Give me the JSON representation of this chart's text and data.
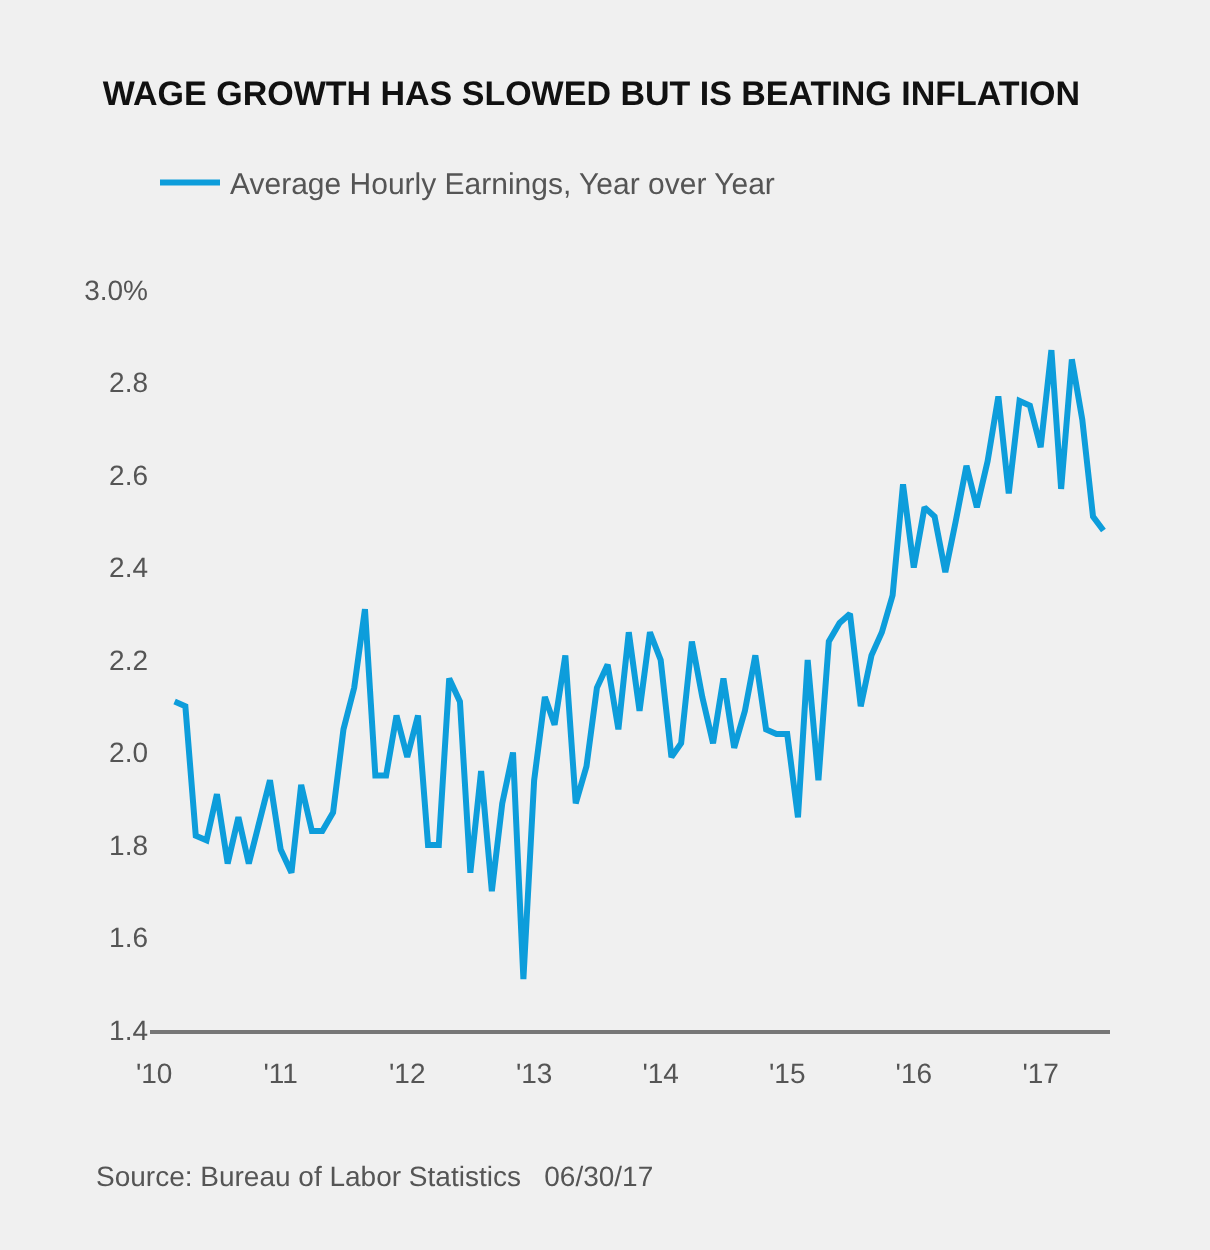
{
  "chart_data": {
    "type": "line",
    "title": "WAGE GROWTH HAS SLOWED BUT IS BEATING INFLATION",
    "x": [
      "2010-03",
      "2010-04",
      "2010-05",
      "2010-06",
      "2010-07",
      "2010-08",
      "2010-09",
      "2010-10",
      "2010-12",
      "2011-01",
      "2011-02",
      "2011-03",
      "2011-04",
      "2011-05",
      "2011-06",
      "2011-07",
      "2011-08",
      "2011-09",
      "2011-10",
      "2011-11",
      "2011-12",
      "2012-01",
      "2012-02",
      "2012-03",
      "2012-04",
      "2012-05",
      "2012-06",
      "2012-07",
      "2012-08",
      "2012-09",
      "2012-10",
      "2012-11",
      "2012-12",
      "2013-01",
      "2013-02",
      "2013-03",
      "2013-04",
      "2013-05",
      "2013-06",
      "2013-07",
      "2013-08",
      "2013-09",
      "2013-10",
      "2013-11",
      "2013-12",
      "2014-01",
      "2014-02",
      "2014-03",
      "2014-04",
      "2014-05",
      "2014-06",
      "2014-07",
      "2014-08",
      "2014-09",
      "2014-10",
      "2014-11",
      "2014-12",
      "2015-01",
      "2015-02",
      "2015-03",
      "2015-04",
      "2015-05",
      "2015-06",
      "2015-07",
      "2015-08",
      "2015-09",
      "2015-10",
      "2015-11",
      "2015-12",
      "2016-01",
      "2016-02",
      "2016-03",
      "2016-04",
      "2016-05",
      "2016-06",
      "2016-07",
      "2016-08",
      "2016-09",
      "2016-10",
      "2016-11",
      "2016-12",
      "2017-01",
      "2017-02",
      "2017-03",
      "2017-04",
      "2017-05",
      "2017-06",
      "2017-07"
    ],
    "series": [
      {
        "name": "Average Hourly Earnings, Year over Year",
        "color": "#0d9ddb",
        "values": [
          2.11,
          2.1,
          1.82,
          1.81,
          1.91,
          1.76,
          1.86,
          1.76,
          1.94,
          1.79,
          1.74,
          1.93,
          1.83,
          1.83,
          1.87,
          2.05,
          2.14,
          2.31,
          1.95,
          1.95,
          2.08,
          1.99,
          2.08,
          1.8,
          1.8,
          2.16,
          2.11,
          1.74,
          1.96,
          1.7,
          1.89,
          2.0,
          1.51,
          1.94,
          2.12,
          2.06,
          2.21,
          1.89,
          1.97,
          2.14,
          2.19,
          2.05,
          2.26,
          2.09,
          2.26,
          2.2,
          1.99,
          2.02,
          2.24,
          2.12,
          2.02,
          2.16,
          2.01,
          2.09,
          2.21,
          2.05,
          2.04,
          2.04,
          1.86,
          2.2,
          1.94,
          2.24,
          2.28,
          2.3,
          2.1,
          2.21,
          2.26,
          2.34,
          2.58,
          2.4,
          2.53,
          2.51,
          2.39,
          2.5,
          2.62,
          2.53,
          2.63,
          2.77,
          2.56,
          2.76,
          2.75,
          2.66,
          2.87,
          2.57,
          2.85,
          2.72,
          2.51,
          2.48
        ]
      }
    ],
    "xlim": [
      "2009-12-20",
      "2017-07-20"
    ],
    "xticks": [
      {
        "value": "2010-01-01",
        "label": "'10"
      },
      {
        "value": "2011-01-01",
        "label": "'11"
      },
      {
        "value": "2012-01-01",
        "label": "'12"
      },
      {
        "value": "2013-01-01",
        "label": "'13"
      },
      {
        "value": "2014-01-01",
        "label": "'14"
      },
      {
        "value": "2015-01-01",
        "label": "'15"
      },
      {
        "value": "2016-01-01",
        "label": "'16"
      },
      {
        "value": "2017-01-01",
        "label": "'17"
      }
    ],
    "ylim": [
      1.4,
      3.0
    ],
    "yticks": [
      1.4,
      1.6,
      1.8,
      {
        "value": 2.0,
        "label": "2.0"
      },
      2.2,
      2.4,
      2.6,
      2.8,
      {
        "value": 3.0,
        "label": "3.0%"
      }
    ],
    "grid": false,
    "legend": "top left",
    "marker": "none",
    "line_style": "solid",
    "annotations": [
      "Source: Bureau of Labor Statistics   06/30/17"
    ]
  }
}
